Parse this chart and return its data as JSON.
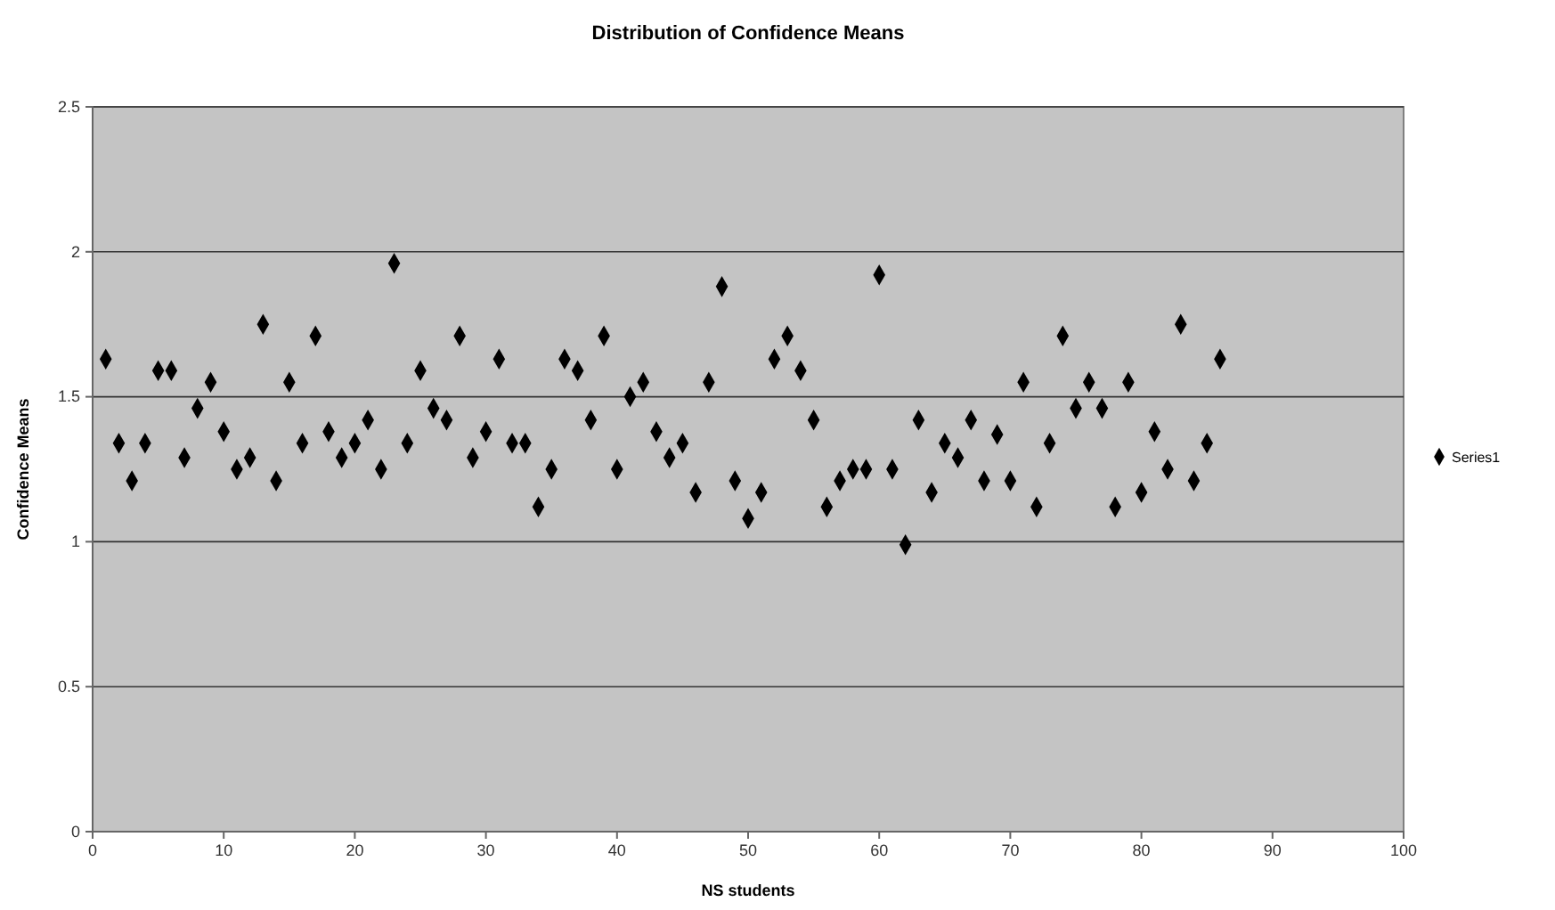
{
  "chart_data": {
    "type": "scatter",
    "title": "Distribution of Confidence Means",
    "xlabel": "NS students",
    "ylabel": "Confidence Means",
    "x": [
      1,
      2,
      3,
      4,
      5,
      6,
      7,
      8,
      9,
      10,
      11,
      12,
      13,
      14,
      15,
      16,
      17,
      18,
      19,
      20,
      21,
      22,
      23,
      24,
      25,
      26,
      27,
      28,
      29,
      30,
      31,
      32,
      33,
      34,
      35,
      36,
      37,
      38,
      39,
      40,
      41,
      42,
      43,
      44,
      45,
      46,
      47,
      48,
      49,
      50,
      51,
      52,
      53,
      54,
      55,
      56,
      57,
      58,
      59,
      60,
      61,
      62,
      63,
      64,
      65,
      66,
      67,
      68,
      69,
      70,
      71,
      72,
      73,
      74,
      75,
      76,
      77,
      78,
      79,
      80,
      81,
      82,
      83,
      84,
      85,
      86
    ],
    "series": [
      {
        "name": "Series1",
        "color": "#000000",
        "values": [
          1.63,
          1.34,
          1.21,
          1.34,
          1.59,
          1.59,
          1.29,
          1.46,
          1.55,
          1.38,
          1.25,
          1.29,
          1.75,
          1.21,
          1.55,
          1.34,
          1.71,
          1.38,
          1.29,
          1.34,
          1.42,
          1.25,
          1.96,
          1.34,
          1.59,
          1.46,
          1.42,
          1.71,
          1.29,
          1.38,
          1.63,
          1.34,
          1.34,
          1.12,
          1.25,
          1.63,
          1.59,
          1.42,
          1.71,
          1.25,
          1.5,
          1.55,
          1.38,
          1.29,
          1.34,
          1.17,
          1.55,
          1.88,
          1.21,
          1.08,
          1.17,
          1.63,
          1.71,
          1.59,
          1.42,
          1.12,
          1.21,
          1.25,
          1.25,
          1.92,
          1.25,
          0.99,
          1.42,
          1.17,
          1.34,
          1.29,
          1.42,
          1.21,
          1.37,
          1.21,
          1.55,
          1.12,
          1.34,
          1.71,
          1.46,
          1.55,
          1.46,
          1.12,
          1.55,
          1.17,
          1.38,
          1.25,
          1.75,
          1.21,
          1.34,
          1.63
        ]
      }
    ],
    "xlim": [
      0,
      100
    ],
    "xticks": [
      0,
      10,
      20,
      30,
      40,
      50,
      60,
      70,
      80,
      90,
      100
    ],
    "ylim": [
      0,
      2.5
    ],
    "yticks": [
      0,
      0.5,
      1,
      1.5,
      2,
      2.5
    ],
    "grid": "y",
    "legend": "right",
    "marker": "diamond"
  }
}
